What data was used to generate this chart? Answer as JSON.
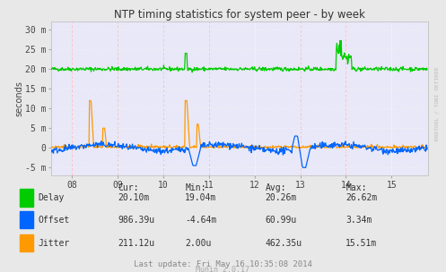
{
  "title": "NTP timing statistics for system peer - by week",
  "ylabel": "seconds",
  "fig_bg_color": "#e8e8e8",
  "plot_bg_color": "#e8e8f8",
  "grid_color_major": "#ccccdd",
  "grid_color_minor": "#ddddee",
  "vline_color": "#ffaaaa",
  "ytick_labels": [
    "-5 m",
    "0",
    "5 m",
    "10 m",
    "15 m",
    "20 m",
    "25 m",
    "30 m"
  ],
  "ytick_values": [
    -0.005,
    0,
    0.005,
    0.01,
    0.015,
    0.02,
    0.025,
    0.03
  ],
  "ylim": [
    -0.007,
    0.032
  ],
  "xlim": [
    7.55,
    15.8
  ],
  "xtick_values": [
    8,
    9,
    10,
    11,
    12,
    13,
    14,
    15
  ],
  "xtick_labels": [
    "08",
    "09",
    "10",
    "11",
    "12",
    "13",
    "14",
    "15"
  ],
  "vline_positions": [
    8,
    9,
    10,
    11,
    13,
    14
  ],
  "delay_color": "#00cc00",
  "offset_color": "#0066ff",
  "jitter_color": "#ff9900",
  "stats_headers": [
    "Cur:",
    "Min:",
    "Avg:",
    "Max:"
  ],
  "stats_rows": [
    {
      "label": "Delay",
      "color": "#00cc00",
      "values": [
        "20.10m",
        "19.04m",
        "20.26m",
        "26.62m"
      ]
    },
    {
      "label": "Offset",
      "color": "#0066ff",
      "values": [
        "986.39u",
        "-4.64m",
        "60.99u",
        "3.34m"
      ]
    },
    {
      "label": "Jitter",
      "color": "#ff9900",
      "values": [
        "211.12u",
        "2.00u",
        "462.35u",
        "15.51m"
      ]
    }
  ],
  "last_update": "Last update: Fri May 16 10:35:08 2014",
  "munin_version": "Munin 2.0.17",
  "watermark": "RRDTOOL / TOBI OETIKER"
}
